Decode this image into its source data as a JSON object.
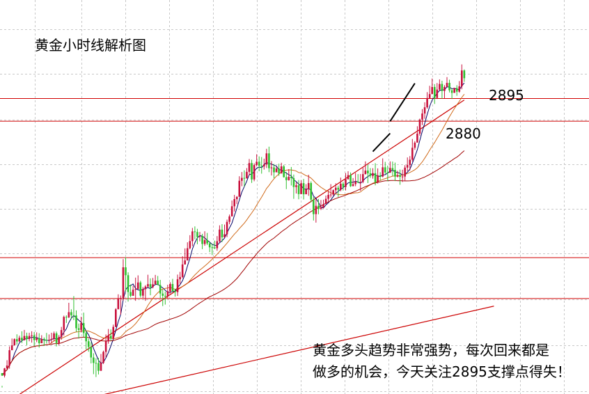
{
  "chart_data": {
    "type": "candlestick",
    "title": "黄金小时线解析图",
    "annotation": {
      "line1": "黄金多头趋势非常强势，每次回来都是",
      "line2": "做多的机会，今天关注2895支撑点得失！"
    },
    "level_labels": {
      "upper": "2895",
      "lower": "2880"
    },
    "ylim": [
      2700,
      2960
    ],
    "colors": {
      "bullish": "#c8103c",
      "bearish": "#2fbf2f",
      "ma_fast": "#000066",
      "ma_mid": "#d06a1a",
      "ma_slow": "#a00000",
      "levels": "#d00000",
      "trendlines": "#cc0000",
      "grid": "#c8c8c8",
      "arrow": "#000000"
    },
    "grid": true,
    "horizontal_levels": [
      2895,
      2880,
      2790,
      2763
    ],
    "trendlines": [
      {
        "start": [
          -2,
          2690
        ],
        "end": [
          187,
          2894
        ]
      },
      {
        "start": [
          15,
          2690
        ],
        "end": [
          199,
          2758
        ]
      }
    ],
    "targets": [
      {
        "label": "2880",
        "from": [
          150,
          2860
        ],
        "to": [
          157,
          2872
        ]
      },
      {
        "label": "2895",
        "from": [
          157,
          2880
        ],
        "to": [
          167,
          2905
        ]
      }
    ],
    "candles": [
      [
        2713.8,
        2712.1,
        2705.4,
        2704.3
      ],
      [
        2712.1,
        2716.9,
        2717.2,
        2710.9
      ],
      [
        2716.9,
        2718.8,
        2722.3,
        2716.2
      ],
      [
        2718.8,
        2728.9,
        2731.4,
        2716.7
      ],
      [
        2728.9,
        2732.1,
        2736.6,
        2729.4
      ],
      [
        2732.1,
        2736.2,
        2736.7,
        2732.0
      ],
      [
        2736.2,
        2734.7,
        2739.4,
        2732.5
      ],
      [
        2734.7,
        2737.1,
        2738.5,
        2734.4
      ],
      [
        2737.1,
        2735.4,
        2741.4,
        2733.6
      ],
      [
        2735.4,
        2738.3,
        2742.3,
        2736.2
      ],
      [
        2738.3,
        2736.3,
        2740.5,
        2732.2
      ],
      [
        2736.3,
        2738.3,
        2740.4,
        2734.8
      ],
      [
        2738.3,
        2738.7,
        2741.4,
        2733.9
      ],
      [
        2738.7,
        2735.6,
        2740.9,
        2731.6
      ],
      [
        2735.6,
        2736.8,
        2740.7,
        2734.2
      ],
      [
        2736.8,
        2733.5,
        2740.1,
        2730.6
      ],
      [
        2733.5,
        2736.3,
        2738.8,
        2733.8
      ],
      [
        2736.3,
        2735.6,
        2737.3,
        2731.7
      ],
      [
        2735.6,
        2735.4,
        2740.3,
        2733.3
      ],
      [
        2735.4,
        2735.8,
        2739.3,
        2733.3
      ],
      [
        2735.8,
        2736.4,
        2740.4,
        2733.3
      ],
      [
        2736.4,
        2740.0,
        2741.2,
        2734.8
      ],
      [
        2740.0,
        2733.6,
        2741.2,
        2731.4
      ],
      [
        2733.6,
        2737.6,
        2738.9,
        2732.1
      ],
      [
        2737.6,
        2742.2,
        2744.3,
        2735.8
      ],
      [
        2742.2,
        2750.9,
        2751.7,
        2738.5
      ],
      [
        2750.9,
        2750.6,
        2751.9,
        2746.9
      ],
      [
        2750.6,
        2754.0,
        2760.2,
        2750.1
      ],
      [
        2754.0,
        2752.0,
        2755.9,
        2749.4
      ],
      [
        2752.0,
        2751.8,
        2764.6,
        2748.7
      ],
      [
        2751.8,
        2743.4,
        2755.2,
        2741.0
      ],
      [
        2743.4,
        2742.3,
        2746.5,
        2736.6
      ],
      [
        2742.3,
        2746.8,
        2751.0,
        2740.6
      ],
      [
        2746.8,
        2740.2,
        2753.7,
        2737.4
      ],
      [
        2740.2,
        2734.8,
        2741.9,
        2729.4
      ],
      [
        2734.8,
        2731.1,
        2736.6,
        2727.9
      ],
      [
        2731.1,
        2724.1,
        2734.2,
        2720.2
      ],
      [
        2724.1,
        2720.5,
        2726.9,
        2713.1
      ],
      [
        2720.5,
        2720.4,
        2723.6,
        2711.2
      ],
      [
        2720.4,
        2715.3,
        2723.8,
        2712.9
      ],
      [
        2715.3,
        2720.6,
        2726.4,
        2715.3
      ],
      [
        2720.6,
        2727.8,
        2728.6,
        2719.8
      ],
      [
        2727.8,
        2734.9,
        2739.3,
        2724.2
      ],
      [
        2734.9,
        2738.4,
        2742.9,
        2733.2
      ],
      [
        2738.4,
        2736.6,
        2742.6,
        2735.2
      ],
      [
        2736.6,
        2744.3,
        2745.8,
        2736.1
      ],
      [
        2744.3,
        2755.9,
        2756.6,
        2744.1
      ],
      [
        2755.9,
        2762.7,
        2765.8,
        2756.5
      ],
      [
        2762.7,
        2763.4,
        2765.0,
        2752.4
      ],
      [
        2763.4,
        2783.6,
        2789.0,
        2761.7
      ],
      [
        2783.6,
        2778.4,
        2790.2,
        2767.8
      ],
      [
        2778.4,
        2767.3,
        2780.3,
        2761.0
      ],
      [
        2767.3,
        2764.8,
        2772.3,
        2763.9
      ],
      [
        2764.8,
        2768.8,
        2771.4,
        2765.2
      ],
      [
        2768.8,
        2769.2,
        2776.8,
        2761.5
      ],
      [
        2769.2,
        2773.6,
        2778.3,
        2770.2
      ],
      [
        2773.6,
        2764.9,
        2774.7,
        2763.7
      ],
      [
        2764.9,
        2769.2,
        2770.6,
        2763.3
      ],
      [
        2769.2,
        2770.9,
        2771.8,
        2761.5
      ],
      [
        2770.9,
        2772.5,
        2778.7,
        2770.2
      ],
      [
        2772.5,
        2770.5,
        2776.3,
        2765.2
      ],
      [
        2770.5,
        2772.4,
        2776.6,
        2769.7
      ],
      [
        2772.4,
        2774.8,
        2778.6,
        2772.1
      ],
      [
        2774.8,
        2771.9,
        2777.9,
        2771.8
      ],
      [
        2771.9,
        2766.3,
        2775.3,
        2763.2
      ],
      [
        2766.3,
        2764.8,
        2768.8,
        2758.0
      ],
      [
        2764.8,
        2764.5,
        2767.5,
        2759.0
      ],
      [
        2764.5,
        2767.8,
        2772.1,
        2763.1
      ],
      [
        2767.8,
        2772.6,
        2773.8,
        2766.3
      ],
      [
        2772.6,
        2767.9,
        2776.0,
        2767.3
      ],
      [
        2767.9,
        2767.3,
        2769.4,
        2764.3
      ],
      [
        2767.3,
        2775.7,
        2778.8,
        2764.7
      ],
      [
        2775.7,
        2777.2,
        2780.6,
        2772.8
      ],
      [
        2777.2,
        2785.5,
        2790.9,
        2776.3
      ],
      [
        2785.5,
        2788.1,
        2796.1,
        2785.4
      ],
      [
        2788.1,
        2796.2,
        2800.1,
        2789.6
      ],
      [
        2796.2,
        2800.9,
        2804.8,
        2795.5
      ],
      [
        2800.9,
        2807.3,
        2809.6,
        2797.6
      ],
      [
        2807.3,
        2806.9,
        2810.6,
        2802.1
      ],
      [
        2806.9,
        2803.6,
        2809.0,
        2798.8
      ],
      [
        2803.6,
        2804.1,
        2807.0,
        2800.7
      ],
      [
        2804.1,
        2799.0,
        2805.7,
        2795.6
      ],
      [
        2799.0,
        2801.6,
        2807.4,
        2797.8
      ],
      [
        2801.6,
        2799.4,
        2806.3,
        2798.3
      ],
      [
        2799.4,
        2796.8,
        2800.3,
        2793.6
      ],
      [
        2796.8,
        2796.7,
        2799.2,
        2791.7
      ],
      [
        2796.7,
        2796.2,
        2801.2,
        2795.6
      ],
      [
        2796.2,
        2800.8,
        2804.2,
        2794.5
      ],
      [
        2800.8,
        2808.5,
        2811.3,
        2799.9
      ],
      [
        2808.5,
        2803.4,
        2812.1,
        2800.3
      ],
      [
        2803.4,
        2805.4,
        2811.8,
        2803.2
      ],
      [
        2805.4,
        2813.6,
        2815.1,
        2803.5
      ],
      [
        2813.6,
        2817.2,
        2818.4,
        2812.0
      ],
      [
        2817.2,
        2823.9,
        2827.7,
        2817.6
      ],
      [
        2823.9,
        2828.6,
        2831.4,
        2820.4
      ],
      [
        2828.6,
        2830.1,
        2830.6,
        2825.3
      ],
      [
        2830.1,
        2840.7,
        2843.7,
        2830.7
      ],
      [
        2840.7,
        2842.6,
        2846.5,
        2837.1
      ],
      [
        2842.6,
        2842.2,
        2847.6,
        2837.0
      ],
      [
        2842.2,
        2846.6,
        2849.1,
        2846.3
      ],
      [
        2846.6,
        2852.4,
        2855.1,
        2844.0
      ],
      [
        2852.4,
        2841.6,
        2854.6,
        2839.3
      ],
      [
        2841.6,
        2851.1,
        2852.2,
        2840.4
      ],
      [
        2851.1,
        2853.3,
        2858.2,
        2850.2
      ],
      [
        2853.3,
        2850.6,
        2856.8,
        2847.0
      ],
      [
        2850.6,
        2850.2,
        2856.4,
        2845.4
      ],
      [
        2850.2,
        2851.4,
        2855.3,
        2848.1
      ],
      [
        2851.4,
        2858.8,
        2861.8,
        2849.1
      ],
      [
        2858.8,
        2849.0,
        2863.2,
        2846.4
      ],
      [
        2849.0,
        2849.5,
        2853.7,
        2844.2
      ],
      [
        2849.5,
        2846.3,
        2851.8,
        2842.4
      ],
      [
        2846.3,
        2848.8,
        2850.1,
        2846.6
      ],
      [
        2848.8,
        2845.5,
        2852.0,
        2844.0
      ],
      [
        2845.5,
        2850.2,
        2852.6,
        2848.7
      ],
      [
        2850.2,
        2843.1,
        2851.2,
        2842.8
      ],
      [
        2843.1,
        2841.1,
        2846.6,
        2835.2
      ],
      [
        2841.1,
        2843.4,
        2848.4,
        2840.8
      ],
      [
        2843.4,
        2842.4,
        2849.8,
        2837.6
      ],
      [
        2842.4,
        2836.6,
        2844.8,
        2828.8
      ],
      [
        2836.6,
        2837.7,
        2839.7,
        2832.3
      ],
      [
        2837.7,
        2831.9,
        2841.2,
        2828.5
      ],
      [
        2831.9,
        2839.1,
        2841.0,
        2832.8
      ],
      [
        2839.1,
        2831.8,
        2841.9,
        2828.4
      ],
      [
        2831.8,
        2835.1,
        2838.5,
        2834.0
      ],
      [
        2835.1,
        2839.2,
        2844.7,
        2830.8
      ],
      [
        2839.2,
        2828.3,
        2840.3,
        2826.5
      ],
      [
        2828.3,
        2818.7,
        2830.0,
        2814.5
      ],
      [
        2818.7,
        2824.2,
        2828.5,
        2813.1
      ],
      [
        2824.2,
        2822.2,
        2828.7,
        2818.6
      ],
      [
        2822.2,
        2823.1,
        2828.0,
        2821.4
      ],
      [
        2823.1,
        2825.3,
        2828.2,
        2822.5
      ],
      [
        2825.3,
        2828.8,
        2831.0,
        2826.7
      ],
      [
        2828.8,
        2831.4,
        2834.0,
        2827.2
      ],
      [
        2831.4,
        2831.6,
        2838.5,
        2829.6
      ],
      [
        2831.6,
        2834.5,
        2835.0,
        2830.8
      ],
      [
        2834.5,
        2836.1,
        2839.0,
        2832.5
      ],
      [
        2836.1,
        2834.8,
        2837.5,
        2830.1
      ],
      [
        2834.8,
        2838.8,
        2842.8,
        2833.8
      ],
      [
        2838.8,
        2836.6,
        2839.9,
        2834.3
      ],
      [
        2836.6,
        2841.8,
        2845.8,
        2834.3
      ],
      [
        2841.8,
        2844.4,
        2847.0,
        2841.4
      ],
      [
        2844.4,
        2837.1,
        2846.2,
        2836.6
      ],
      [
        2837.1,
        2838.5,
        2842.5,
        2837.5
      ],
      [
        2838.5,
        2840.1,
        2845.9,
        2837.1
      ],
      [
        2840.1,
        2839.6,
        2845.1,
        2839.1
      ],
      [
        2839.6,
        2839.9,
        2845.2,
        2834.1
      ],
      [
        2839.9,
        2845.1,
        2849.8,
        2839.1
      ],
      [
        2845.1,
        2847.4,
        2853.5,
        2844.9
      ],
      [
        2847.4,
        2845.6,
        2851.3,
        2839.2
      ],
      [
        2845.6,
        2843.9,
        2849.1,
        2842.6
      ],
      [
        2843.9,
        2845.7,
        2849.0,
        2842.1
      ],
      [
        2845.7,
        2839.8,
        2852.3,
        2837.7
      ],
      [
        2839.8,
        2844.3,
        2848.9,
        2838.9
      ],
      [
        2844.3,
        2843.5,
        2846.4,
        2840.9
      ],
      [
        2843.5,
        2849.6,
        2855.5,
        2843.0
      ],
      [
        2849.6,
        2846.2,
        2853.2,
        2845.2
      ],
      [
        2846.2,
        2846.0,
        2850.7,
        2840.4
      ],
      [
        2846.0,
        2849.1,
        2853.5,
        2847.0
      ],
      [
        2849.1,
        2847.9,
        2853.4,
        2843.9
      ],
      [
        2847.9,
        2843.5,
        2852.7,
        2840.5
      ],
      [
        2843.5,
        2844.4,
        2847.3,
        2842.9
      ],
      [
        2844.4,
        2843.3,
        2848.1,
        2838.1
      ],
      [
        2843.3,
        2843.5,
        2848.0,
        2839.9
      ],
      [
        2843.5,
        2849.4,
        2851.0,
        2840.5
      ],
      [
        2849.4,
        2851.1,
        2856.1,
        2847.0
      ],
      [
        2851.1,
        2854.6,
        2857.0,
        2847.5
      ],
      [
        2854.6,
        2862.5,
        2868.3,
        2853.3
      ],
      [
        2862.5,
        2865.9,
        2866.9,
        2861.1
      ],
      [
        2865.9,
        2871.8,
        2876.7,
        2866.2
      ],
      [
        2871.8,
        2881.1,
        2881.7,
        2870.5
      ],
      [
        2881.1,
        2885.1,
        2888.0,
        2877.5
      ],
      [
        2885.1,
        2889.2,
        2892.5,
        2881.6
      ],
      [
        2889.2,
        2895.3,
        2899.2,
        2888.3
      ],
      [
        2895.3,
        2897.9,
        2903.4,
        2895.3
      ],
      [
        2897.9,
        2902.6,
        2908.2,
        2897.9
      ],
      [
        2902.6,
        2895.4,
        2904.5,
        2891.4
      ],
      [
        2895.4,
        2900.9,
        2905.2,
        2894.7
      ],
      [
        2900.9,
        2904.6,
        2907.6,
        2900.3
      ],
      [
        2904.6,
        2900.0,
        2906.7,
        2894.9
      ],
      [
        2900.0,
        2902.6,
        2903.8,
        2895.2
      ],
      [
        2902.6,
        2905.3,
        2909.1,
        2903.2
      ],
      [
        2905.3,
        2900.4,
        2907.4,
        2899.0
      ],
      [
        2900.4,
        2898.7,
        2901.5,
        2894.7
      ],
      [
        2898.7,
        2901.9,
        2902.0,
        2899.1
      ],
      [
        2901.9,
        2899.5,
        2903.8,
        2896.8
      ],
      [
        2899.5,
        2903.0,
        2906.5,
        2898.8
      ],
      [
        2903.0,
        2913.5,
        2917.5,
        2901.1
      ],
      [
        2913.5,
        2908.4,
        2914.2,
        2906.0
      ]
    ],
    "moving_averages": [
      {
        "role": "fast",
        "period": 5
      },
      {
        "role": "mid",
        "period": 20
      },
      {
        "role": "slow",
        "period": 60
      }
    ]
  }
}
